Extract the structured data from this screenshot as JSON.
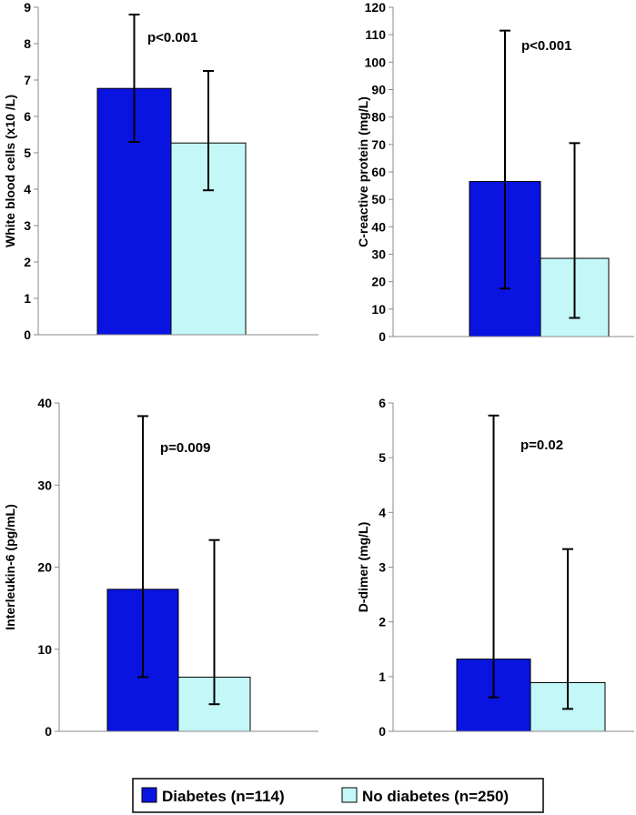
{
  "colors": {
    "diabetes": "#0a14e0",
    "no_diabetes": "#c4f7f7",
    "axis": "#8a8a8a",
    "error": "#000000"
  },
  "legend": {
    "items": [
      {
        "label": "Diabetes (n=114)",
        "color": "#0a14e0"
      },
      {
        "label": "No diabetes (n=250)",
        "color": "#c4f7f7"
      }
    ]
  },
  "chart_data": [
    {
      "type": "bar",
      "ylabel": "White blood cells (x10 /L)",
      "ylim": [
        0,
        9
      ],
      "yticks": [
        0,
        1,
        2,
        3,
        4,
        5,
        6,
        7,
        8,
        9
      ],
      "annotation": "p<0.001",
      "series": [
        {
          "name": "Diabetes (n=114)",
          "value": 6.77,
          "err_low": 5.3,
          "err_high": 8.8
        },
        {
          "name": "No diabetes (n=250)",
          "value": 5.27,
          "err_low": 3.97,
          "err_high": 7.25
        }
      ]
    },
    {
      "type": "bar",
      "ylabel": "C-reactive protein (mg/L)",
      "ylim": [
        0,
        120
      ],
      "yticks": [
        0,
        10,
        20,
        30,
        40,
        50,
        60,
        70,
        80,
        90,
        100,
        110,
        120
      ],
      "annotation": "p<0.001",
      "series": [
        {
          "name": "Diabetes (n=114)",
          "value": 56.5,
          "err_low": 17.5,
          "err_high": 111.5
        },
        {
          "name": "No diabetes (n=250)",
          "value": 28.5,
          "err_low": 6.8,
          "err_high": 70.5
        }
      ]
    },
    {
      "type": "bar",
      "ylabel": "Interleukin-6 (pg/mL)",
      "ylim": [
        0,
        40
      ],
      "yticks": [
        0,
        10,
        20,
        30,
        40
      ],
      "annotation": "p=0.009",
      "series": [
        {
          "name": "Diabetes (n=114)",
          "value": 17.3,
          "err_low": 6.6,
          "err_high": 38.4
        },
        {
          "name": "No diabetes (n=250)",
          "value": 6.6,
          "err_low": 3.3,
          "err_high": 23.3
        }
      ]
    },
    {
      "type": "bar",
      "ylabel": "D-dimer (mg/L)",
      "ylim": [
        0,
        6
      ],
      "yticks": [
        0,
        1,
        2,
        3,
        4,
        5,
        6
      ],
      "annotation": "p=0.02",
      "series": [
        {
          "name": "Diabetes (n=114)",
          "value": 1.32,
          "err_low": 0.62,
          "err_high": 5.77
        },
        {
          "name": "No diabetes (n=250)",
          "value": 0.89,
          "err_low": 0.41,
          "err_high": 3.33
        }
      ]
    }
  ]
}
